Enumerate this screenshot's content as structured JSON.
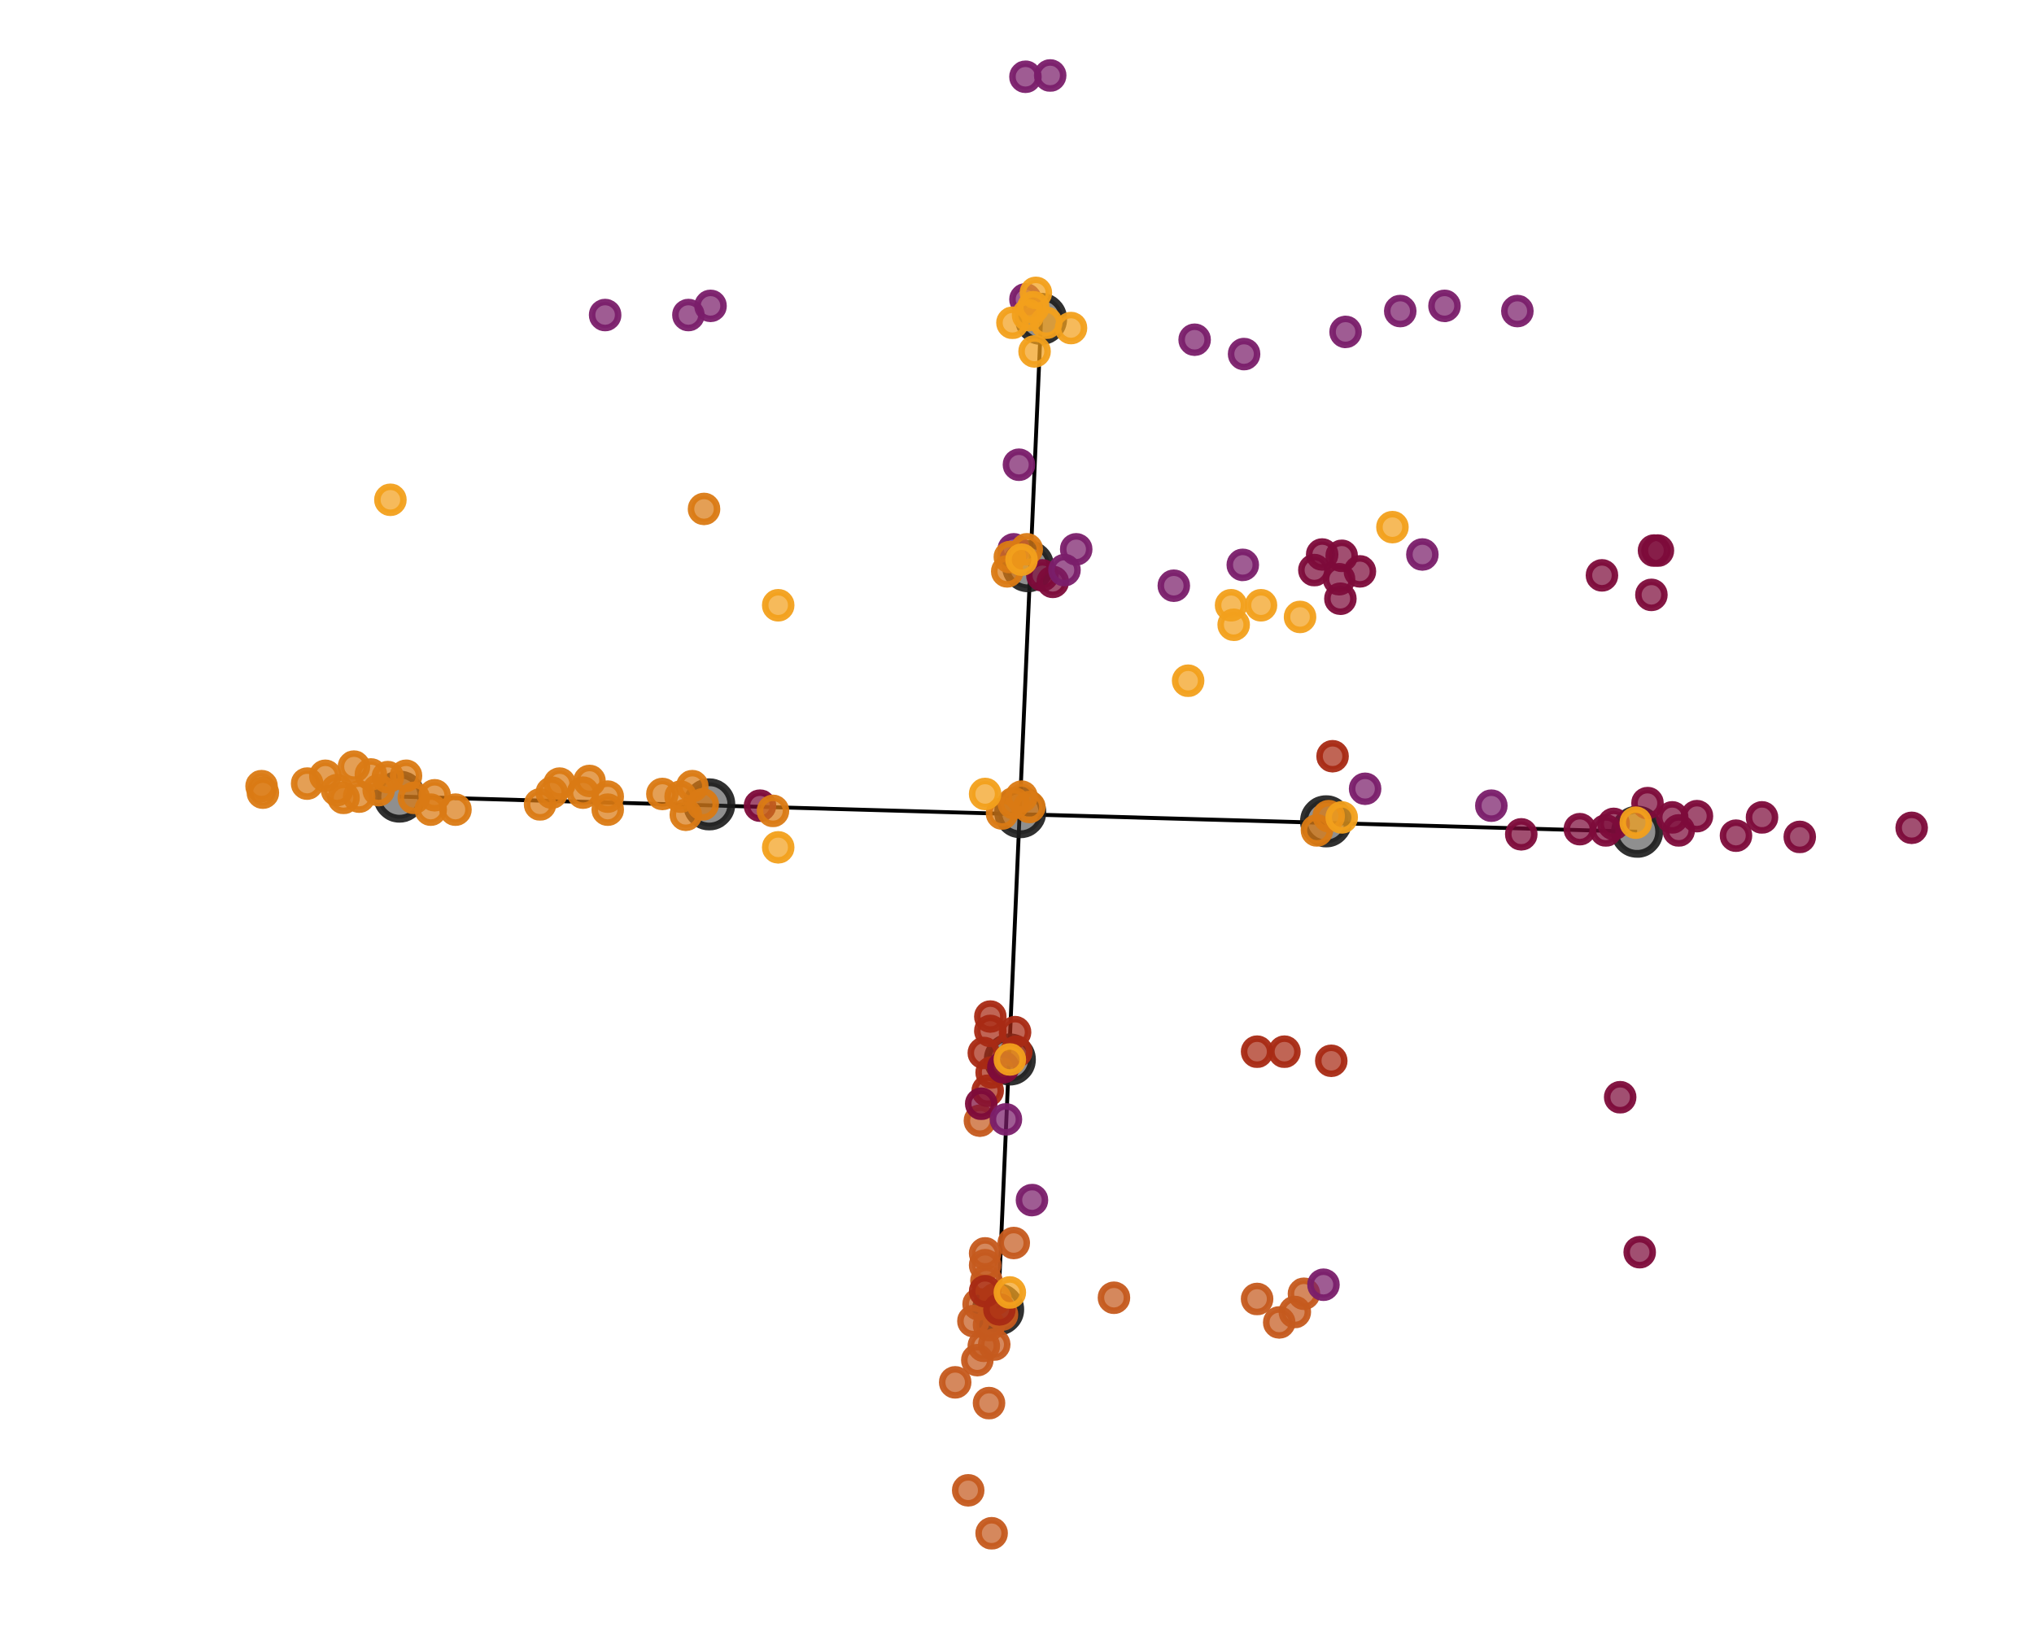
{
  "chart_data": {
    "type": "scatter",
    "title": "",
    "xlabel": "",
    "ylabel": "",
    "grid": false,
    "legend": "none",
    "xlim": [
      0,
      1563
    ],
    "ylim": [
      1250,
      0
    ],
    "axes_segments": [
      {
        "name": "horizontal",
        "from": [
          307,
          638
        ],
        "to": [
          1258,
          611
        ]
      },
      {
        "name": "vertical",
        "from": [
          767,
          244
        ],
        "to": [
          800,
          1005
        ]
      }
    ],
    "hubs": [
      {
        "name": "left-outer",
        "x": 307,
        "y": 638
      },
      {
        "name": "left-inner",
        "x": 545,
        "y": 632
      },
      {
        "name": "center",
        "x": 784,
        "y": 626
      },
      {
        "name": "right-inner",
        "x": 1019,
        "y": 619
      },
      {
        "name": "right-outer",
        "x": 1258,
        "y": 611
      },
      {
        "name": "top-outer",
        "x": 767,
        "y": 244
      },
      {
        "name": "top-inner",
        "x": 776,
        "y": 436
      },
      {
        "name": "bottom-inner",
        "x": 790,
        "y": 815
      },
      {
        "name": "bottom-outer",
        "x": 800,
        "y": 1005
      }
    ],
    "series": [
      {
        "color": "#c55a1e",
        "points": [
          [
            762,
            72
          ],
          [
            744,
            105
          ],
          [
            760,
            172
          ],
          [
            734,
            188
          ],
          [
            751,
            205
          ],
          [
            756,
            216
          ],
          [
            764,
            217
          ],
          [
            748,
            235
          ],
          [
            760,
            232
          ],
          [
            770,
            240
          ],
          [
            752,
            248
          ],
          [
            765,
            252
          ],
          [
            758,
            266
          ],
          [
            757,
            278
          ],
          [
            757,
            287
          ],
          [
            779,
            295
          ],
          [
            856,
            253
          ],
          [
            966,
            252
          ],
          [
            983,
            234
          ],
          [
            995,
            242
          ],
          [
            1002,
            256
          ],
          [
            753,
            389
          ]
        ]
      },
      {
        "color": "#a82a14",
        "points": [
          [
            768,
            244
          ],
          [
            757,
            258
          ],
          [
            966,
            442
          ],
          [
            987,
            442
          ],
          [
            1023,
            435
          ],
          [
            759,
            412
          ],
          [
            762,
            426
          ],
          [
            756,
            441
          ],
          [
            781,
            442
          ],
          [
            761,
            458
          ],
          [
            780,
            457
          ],
          [
            761,
            469
          ],
          [
            1024,
            669
          ]
        ]
      },
      {
        "color": "#7d0b3a",
        "points": [
          [
            754,
            402
          ],
          [
            771,
            430
          ],
          [
            1260,
            288
          ],
          [
            1245,
            407
          ],
          [
            1169,
            609
          ],
          [
            1214,
            613
          ],
          [
            1234,
            612
          ],
          [
            1240,
            617
          ],
          [
            1290,
            612
          ],
          [
            1285,
            622
          ],
          [
            1304,
            623
          ],
          [
            1334,
            608
          ],
          [
            1354,
            622
          ],
          [
            1383,
            607
          ],
          [
            1469,
            614
          ],
          [
            1266,
            633
          ],
          [
            1269,
            793
          ],
          [
            1231,
            808
          ],
          [
            1271,
            827
          ],
          [
            1274,
            827
          ],
          [
            1030,
            790
          ],
          [
            1029,
            805
          ],
          [
            1010,
            812
          ],
          [
            1045,
            811
          ],
          [
            1016,
            824
          ],
          [
            1031,
            823
          ],
          [
            809,
            803
          ],
          [
            801,
            808
          ],
          [
            584,
            631
          ]
        ]
      },
      {
        "color": "#7a1d6a",
        "points": [
          [
            1017,
            263
          ],
          [
            793,
            328
          ],
          [
            773,
            390
          ],
          [
            1049,
            644
          ],
          [
            1146,
            631
          ],
          [
            902,
            800
          ],
          [
            955,
            816
          ],
          [
            1093,
            824
          ],
          [
            818,
            812
          ],
          [
            827,
            828
          ],
          [
            783,
            893
          ],
          [
            918,
            989
          ],
          [
            956,
            978
          ],
          [
            1034,
            995
          ],
          [
            1076,
            1011
          ],
          [
            1110,
            1015
          ],
          [
            1166,
            1011
          ],
          [
            465,
            1008
          ],
          [
            529,
            1008
          ],
          [
            546,
            1015
          ],
          [
            788,
            1020
          ],
          [
            788,
            1191
          ],
          [
            807,
            1192
          ],
          [
            779,
            828
          ]
        ]
      },
      {
        "color": "#da7a14",
        "points": [
          [
            202,
            641
          ],
          [
            201,
            646
          ],
          [
            236,
            648
          ],
          [
            250,
            654
          ],
          [
            259,
            643
          ],
          [
            264,
            637
          ],
          [
            276,
            638
          ],
          [
            272,
            661
          ],
          [
            285,
            655
          ],
          [
            298,
            653
          ],
          [
            312,
            654
          ],
          [
            291,
            643
          ],
          [
            318,
            637
          ],
          [
            331,
            628
          ],
          [
            334,
            639
          ],
          [
            350,
            628
          ],
          [
            415,
            632
          ],
          [
            424,
            641
          ],
          [
            430,
            648
          ],
          [
            453,
            650
          ],
          [
            448,
            641
          ],
          [
            467,
            628
          ],
          [
            467,
            638
          ],
          [
            509,
            640
          ],
          [
            523,
            638
          ],
          [
            527,
            624
          ],
          [
            532,
            646
          ],
          [
            540,
            632
          ],
          [
            594,
            627
          ],
          [
            1012,
            612
          ],
          [
            1021,
            623
          ],
          [
            541,
            859
          ],
          [
            770,
            625
          ],
          [
            779,
            633
          ],
          [
            791,
            630
          ],
          [
            785,
            638
          ],
          [
            774,
            811
          ],
          [
            789,
            828
          ],
          [
            776,
            822
          ]
        ]
      },
      {
        "color": "#f2a01c",
        "points": [
          [
            776,
            257
          ],
          [
            776,
            436
          ],
          [
            598,
            599
          ],
          [
            757,
            640
          ],
          [
            1031,
            622
          ],
          [
            1257,
            618
          ],
          [
            913,
            727
          ],
          [
            948,
            770
          ],
          [
            946,
            785
          ],
          [
            969,
            785
          ],
          [
            999,
            776
          ],
          [
            598,
            785
          ],
          [
            300,
            866
          ],
          [
            1070,
            845
          ],
          [
            785,
            820
          ],
          [
            795,
            980
          ],
          [
            778,
            1002
          ],
          [
            804,
            1002
          ],
          [
            823,
            998
          ],
          [
            790,
            1008
          ],
          [
            796,
            1025
          ],
          [
            794,
            1014
          ]
        ]
      }
    ]
  }
}
